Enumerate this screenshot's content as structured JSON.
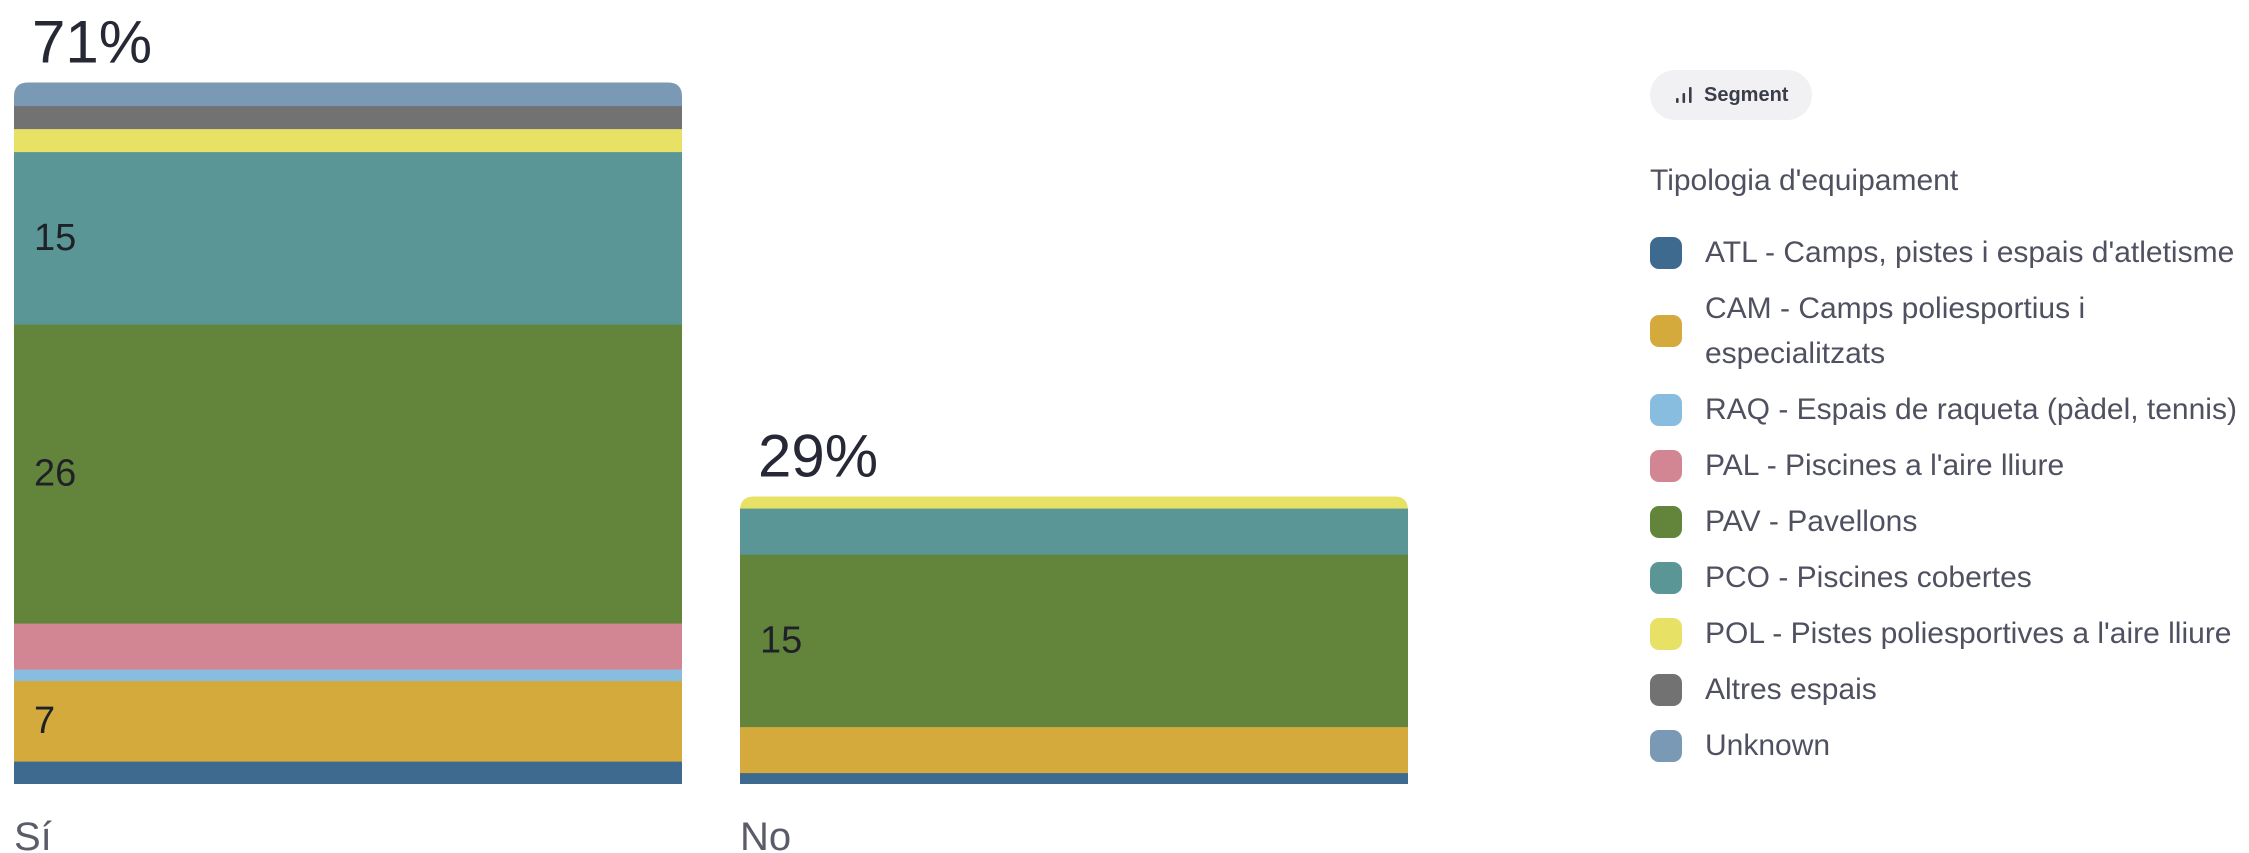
{
  "legend": {
    "segment_label": "Segment",
    "title": "Tipologia d'equipament",
    "items": [
      {
        "label": "ATL - Camps, pistes i espais d'atletisme",
        "color": "#3d6a8e"
      },
      {
        "label": "CAM - Camps poliesportius i especialitzats",
        "color": "#d4aa3d"
      },
      {
        "label": "RAQ - Espais de raqueta (pàdel, tennis)",
        "color": "#88bde0"
      },
      {
        "label": "PAL - Piscines a l'aire lliure",
        "color": "#d28592"
      },
      {
        "label": "PAV - Pavellons",
        "color": "#63853b"
      },
      {
        "label": "PCO - Piscines cobertes",
        "color": "#5a9696"
      },
      {
        "label": "POL - Pistes poliesportives a l'aire lliure",
        "color": "#e7e166"
      },
      {
        "label": "Altres espais",
        "color": "#727272"
      },
      {
        "label": "Unknown",
        "color": "#7999b5"
      }
    ]
  },
  "chart_data": {
    "type": "bar",
    "stacked": true,
    "categories": [
      "Sí",
      "No"
    ],
    "totals_pct": [
      "71%",
      "29%"
    ],
    "series": [
      {
        "name": "ATL - Camps, pistes i espais d'atletisme",
        "values": [
          2,
          1
        ]
      },
      {
        "name": "CAM - Camps poliesportius i especialitzats",
        "values": [
          7,
          4
        ]
      },
      {
        "name": "RAQ - Espais de raqueta (pàdel, tennis)",
        "values": [
          1,
          0
        ]
      },
      {
        "name": "PAL - Piscines a l'aire lliure",
        "values": [
          4,
          0
        ]
      },
      {
        "name": "PAV - Pavellons",
        "values": [
          26,
          15
        ]
      },
      {
        "name": "PCO - Piscines cobertes",
        "values": [
          15,
          4
        ]
      },
      {
        "name": "POL - Pistes poliesportives a l'aire lliure",
        "values": [
          2,
          1
        ]
      },
      {
        "name": "Altres espais",
        "values": [
          2,
          0
        ]
      },
      {
        "name": "Unknown",
        "values": [
          2,
          0
        ]
      }
    ],
    "data_labels": [
      {
        "category": "Sí",
        "series": "CAM - Camps poliesportius i especialitzats",
        "text": "7"
      },
      {
        "category": "Sí",
        "series": "PAV - Pavellons",
        "text": "26"
      },
      {
        "category": "Sí",
        "series": "PCO - Piscines cobertes",
        "text": "15"
      },
      {
        "category": "No",
        "series": "PAV - Pavellons",
        "text": "15"
      }
    ],
    "legend_position": "right",
    "grid": false
  }
}
